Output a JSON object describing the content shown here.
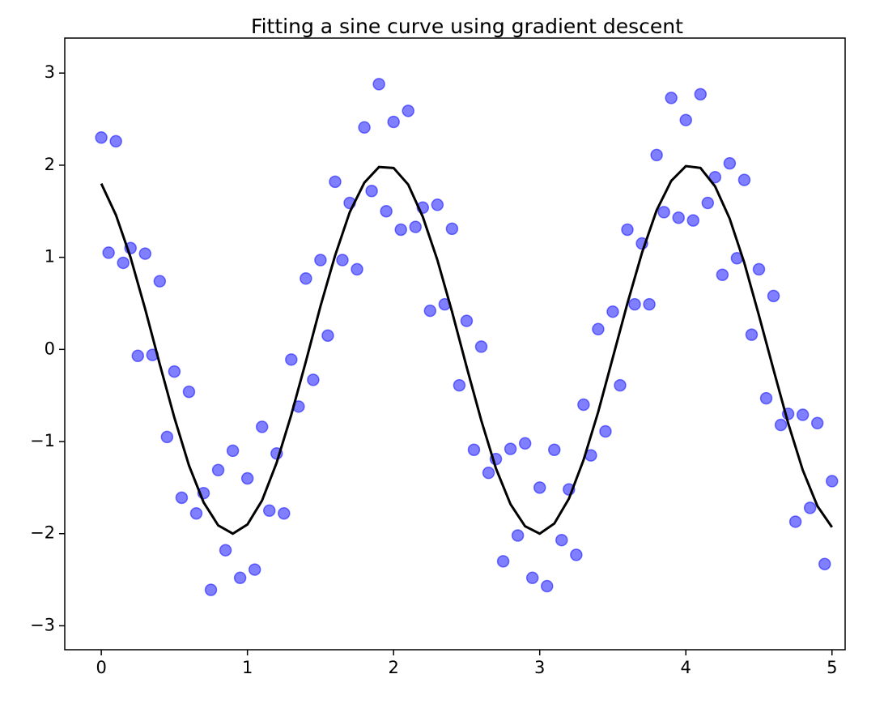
{
  "chart_data": {
    "type": "scatter",
    "title": "Fitting a sine curve using gradient descent",
    "xlim": [
      -0.25,
      5.09
    ],
    "ylim": [
      -3.26,
      3.38
    ],
    "xticks": [
      0,
      1,
      2,
      3,
      4,
      5
    ],
    "yticks": [
      {
        "value": -3,
        "label": "−3"
      },
      {
        "value": -2,
        "label": "−2"
      },
      {
        "value": -1,
        "label": "−1"
      },
      0,
      1,
      2,
      3
    ],
    "points": {
      "color": "#0000ff",
      "x": [
        0,
        0.05,
        0.1,
        0.15,
        0.2,
        0.25,
        0.3,
        0.35,
        0.4,
        0.45,
        0.5,
        0.55,
        0.6,
        0.65,
        0.7,
        0.75,
        0.8,
        0.85,
        0.9,
        0.95,
        1.0,
        1.05,
        1.1,
        1.15,
        1.2,
        1.25,
        1.3,
        1.35,
        1.4,
        1.45,
        1.5,
        1.55,
        1.6,
        1.65,
        1.7,
        1.75,
        1.8,
        1.85,
        1.9,
        1.95,
        2.0,
        2.05,
        2.1,
        2.15,
        2.2,
        2.25,
        2.3,
        2.35,
        2.4,
        2.45,
        2.5,
        2.55,
        2.6,
        2.65,
        2.7,
        2.75,
        2.8,
        2.85,
        2.9,
        2.95,
        3.0,
        3.05,
        3.1,
        3.15,
        3.2,
        3.25,
        3.3,
        3.35,
        3.4,
        3.45,
        3.5,
        3.55,
        3.6,
        3.65,
        3.7,
        3.75,
        3.8,
        3.85,
        3.9,
        3.95,
        4.0,
        4.05,
        4.1,
        4.15,
        4.2,
        4.25,
        4.3,
        4.35,
        4.4,
        4.45,
        4.5,
        4.55,
        4.6,
        4.65,
        4.7,
        4.75,
        4.8,
        4.85,
        4.9,
        4.95,
        5.0
      ],
      "y": [
        2.3,
        1.05,
        2.26,
        0.94,
        1.1,
        -0.07,
        1.04,
        -0.06,
        0.74,
        -0.95,
        -0.24,
        -1.61,
        -0.46,
        -1.78,
        -1.56,
        -2.61,
        -1.31,
        -2.18,
        -1.1,
        -2.48,
        -1.4,
        -2.39,
        -0.84,
        -1.75,
        -1.13,
        -1.78,
        -0.11,
        -0.62,
        0.77,
        -0.33,
        0.97,
        0.15,
        1.82,
        0.97,
        1.59,
        0.87,
        2.41,
        1.72,
        2.88,
        1.5,
        2.47,
        1.3,
        2.59,
        1.33,
        1.54,
        0.42,
        1.57,
        0.49,
        1.31,
        -0.39,
        0.31,
        -1.09,
        0.03,
        -1.34,
        -1.19,
        -2.3,
        -1.08,
        -2.02,
        -1.02,
        -2.48,
        -1.5,
        -2.57,
        -1.09,
        -2.07,
        -1.52,
        -2.23,
        -0.6,
        -1.15,
        0.22,
        -0.89,
        0.41,
        -0.39,
        1.3,
        0.49,
        1.15,
        0.49,
        2.11,
        1.49,
        2.73,
        1.43,
        2.49,
        1.4,
        2.77,
        1.59,
        1.87,
        0.81,
        2.02,
        0.99,
        1.84,
        0.16,
        0.87,
        -0.53,
        0.58,
        -0.82,
        -0.7,
        -1.87,
        -0.71,
        -1.72,
        -0.8,
        -2.33,
        -1.43
      ]
    },
    "fit": {
      "color": "#000000",
      "x": [
        0,
        0.1,
        0.2,
        0.3,
        0.4,
        0.5,
        0.6,
        0.7,
        0.8,
        0.9,
        1.0,
        1.1,
        1.2,
        1.3,
        1.4,
        1.5,
        1.6,
        1.7,
        1.8,
        1.9,
        2.0,
        2.1,
        2.2,
        2.3,
        2.4,
        2.5,
        2.6,
        2.7,
        2.8,
        2.9,
        3.0,
        3.1,
        3.2,
        3.3,
        3.4,
        3.5,
        3.6,
        3.7,
        3.8,
        3.9,
        4.0,
        4.1,
        4.2,
        4.3,
        4.4,
        4.5,
        4.6,
        4.7,
        4.8,
        4.9,
        5.0
      ],
      "y": [
        1.8,
        1.46,
        1.0,
        0.44,
        -0.16,
        -0.74,
        -1.26,
        -1.66,
        -1.91,
        -2.0,
        -1.9,
        -1.64,
        -1.23,
        -0.71,
        -0.13,
        0.47,
        1.02,
        1.49,
        1.81,
        1.98,
        1.97,
        1.79,
        1.44,
        0.97,
        0.41,
        -0.19,
        -0.77,
        -1.29,
        -1.68,
        -1.92,
        -2.0,
        -1.89,
        -1.62,
        -1.2,
        -0.68,
        -0.09,
        0.5,
        1.05,
        1.51,
        1.83,
        1.99,
        1.97,
        1.77,
        1.42,
        0.94,
        0.37,
        -0.22,
        -0.8,
        -1.31,
        -1.7,
        -1.93
      ]
    }
  }
}
